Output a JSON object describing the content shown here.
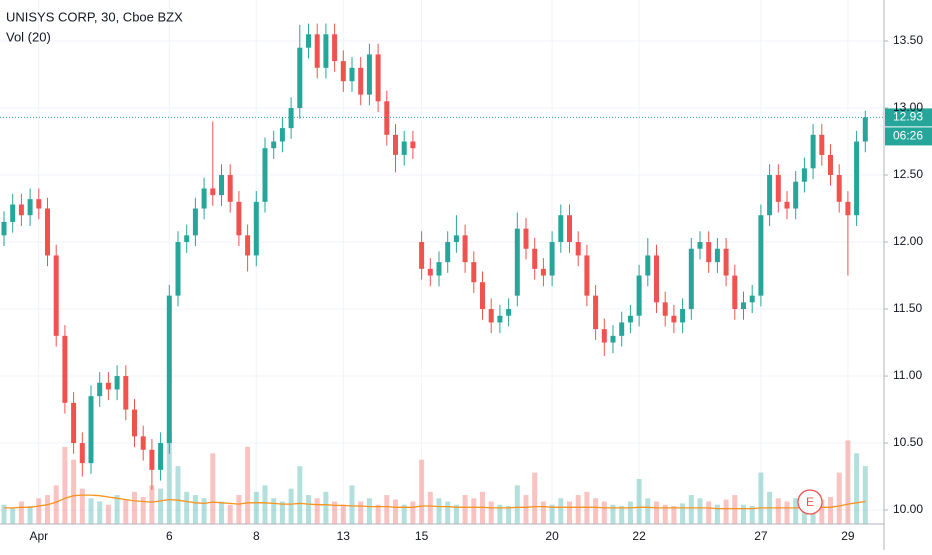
{
  "chart_data": {
    "type": "candlestick",
    "title": "UNISYS CORP, 30, Cboe BZX",
    "indicator": "Vol (20)",
    "countdown": "06:26",
    "earnings_marker": "E",
    "categories": [
      null,
      null,
      null,
      null,
      "Apr",
      null,
      null,
      null,
      null,
      null,
      null,
      null,
      null,
      null,
      null,
      null,
      null,
      null,
      null,
      "6",
      null,
      null,
      null,
      null,
      null,
      null,
      null,
      null,
      null,
      "8",
      null,
      null,
      null,
      null,
      null,
      null,
      null,
      null,
      null,
      "13",
      null,
      null,
      null,
      null,
      null,
      null,
      null,
      null,
      "15",
      null,
      null,
      null,
      null,
      null,
      null,
      null,
      null,
      null,
      null,
      null,
      null,
      null,
      null,
      "20",
      null,
      null,
      null,
      null,
      null,
      null,
      null,
      null,
      null,
      "22",
      null,
      null,
      null,
      null,
      null,
      null,
      null,
      null,
      null,
      null,
      null,
      null,
      null,
      "27",
      null,
      null,
      null,
      null,
      null,
      null,
      null,
      null,
      null,
      "29",
      null,
      null
    ],
    "open": [
      12.05,
      12.15,
      12.28,
      12.2,
      12.32,
      12.25,
      11.9,
      11.3,
      10.8,
      10.5,
      10.35,
      10.85,
      10.95,
      10.9,
      11.0,
      10.75,
      10.55,
      10.45,
      10.3,
      10.5,
      11.6,
      12.0,
      12.05,
      12.25,
      12.4,
      12.35,
      12.5,
      12.3,
      12.05,
      11.9,
      12.3,
      12.7,
      12.75,
      12.85,
      13.0,
      13.45,
      13.55,
      13.3,
      13.55,
      13.35,
      13.2,
      13.3,
      13.1,
      13.4,
      13.05,
      12.8,
      12.65,
      12.75,
      12.0,
      11.8,
      11.75,
      11.85,
      12.0,
      12.05,
      11.85,
      11.7,
      11.5,
      11.4,
      11.45,
      11.6,
      12.1,
      11.95,
      11.8,
      11.75,
      12.0,
      12.2,
      12.0,
      11.9,
      11.6,
      11.35,
      11.25,
      11.3,
      11.4,
      11.45,
      11.75,
      11.9,
      11.55,
      11.45,
      11.4,
      11.5,
      11.95,
      12.0,
      11.85,
      11.95,
      11.75,
      11.5,
      11.55,
      11.6,
      12.2,
      12.5,
      12.3,
      12.25,
      12.45,
      12.55,
      12.8,
      12.65,
      12.5,
      12.3,
      12.2,
      12.75
    ],
    "high": [
      12.23,
      12.36,
      12.36,
      12.4,
      12.4,
      12.33,
      11.98,
      11.38,
      10.88,
      10.58,
      10.93,
      11.03,
      11.03,
      11.08,
      11.08,
      10.83,
      10.63,
      10.53,
      10.58,
      11.68,
      12.08,
      12.13,
      12.33,
      12.48,
      12.9,
      12.58,
      12.58,
      12.38,
      12.13,
      12.38,
      12.78,
      12.83,
      12.93,
      13.08,
      13.62,
      13.63,
      13.63,
      13.63,
      13.63,
      13.43,
      13.38,
      13.38,
      13.48,
      13.48,
      13.13,
      12.88,
      12.83,
      12.83,
      12.08,
      11.88,
      11.93,
      12.08,
      12.2,
      12.13,
      11.93,
      11.78,
      11.58,
      11.53,
      11.58,
      12.22,
      12.18,
      12.03,
      11.88,
      12.08,
      12.28,
      12.28,
      12.08,
      11.98,
      11.68,
      11.43,
      11.38,
      11.48,
      11.53,
      11.83,
      12.03,
      11.98,
      11.63,
      11.53,
      11.58,
      12.03,
      12.08,
      12.08,
      12.03,
      12.03,
      11.83,
      11.63,
      11.68,
      12.28,
      12.58,
      12.58,
      12.38,
      12.53,
      12.63,
      12.88,
      12.88,
      12.73,
      12.58,
      12.38,
      12.83,
      12.98
    ],
    "low": [
      11.97,
      12.07,
      12.12,
      12.12,
      12.17,
      11.82,
      11.22,
      10.72,
      10.42,
      10.25,
      10.27,
      10.77,
      10.82,
      10.82,
      10.67,
      10.47,
      10.37,
      10.15,
      10.22,
      10.42,
      11.52,
      11.92,
      11.97,
      12.17,
      12.27,
      12.27,
      12.22,
      11.97,
      11.78,
      11.82,
      12.22,
      12.62,
      12.67,
      12.77,
      12.92,
      13.37,
      13.22,
      13.22,
      13.27,
      13.12,
      13.12,
      13.02,
      13.02,
      12.97,
      12.72,
      12.52,
      12.57,
      12.62,
      11.72,
      11.67,
      11.67,
      11.77,
      11.92,
      11.77,
      11.62,
      11.42,
      11.32,
      11.32,
      11.37,
      11.52,
      11.87,
      11.72,
      11.67,
      11.67,
      11.92,
      11.92,
      11.82,
      11.52,
      11.27,
      11.15,
      11.17,
      11.22,
      11.32,
      11.37,
      11.67,
      11.47,
      11.37,
      11.32,
      11.32,
      11.42,
      11.87,
      11.77,
      11.77,
      11.67,
      11.42,
      11.42,
      11.47,
      11.52,
      12.12,
      12.22,
      12.17,
      12.17,
      12.37,
      12.47,
      12.57,
      12.42,
      12.22,
      11.75,
      12.12,
      12.67
    ],
    "close": [
      12.15,
      12.28,
      12.2,
      12.32,
      12.25,
      11.9,
      11.3,
      10.8,
      10.5,
      10.35,
      10.85,
      10.95,
      10.9,
      11.0,
      10.75,
      10.55,
      10.45,
      10.3,
      10.5,
      11.6,
      12.0,
      12.05,
      12.25,
      12.4,
      12.35,
      12.5,
      12.3,
      12.05,
      11.9,
      12.3,
      12.7,
      12.75,
      12.85,
      13.0,
      13.45,
      13.55,
      13.3,
      13.55,
      13.35,
      13.2,
      13.3,
      13.1,
      13.4,
      13.05,
      12.8,
      12.65,
      12.75,
      12.7,
      11.8,
      11.75,
      11.85,
      12.0,
      12.05,
      11.85,
      11.7,
      11.5,
      11.4,
      11.45,
      11.5,
      12.1,
      11.95,
      11.8,
      11.75,
      12.0,
      12.2,
      12.0,
      11.9,
      11.6,
      11.35,
      11.25,
      11.3,
      11.4,
      11.45,
      11.75,
      11.9,
      11.55,
      11.45,
      11.4,
      11.5,
      11.95,
      12.0,
      11.85,
      11.95,
      11.75,
      11.5,
      11.55,
      11.6,
      12.2,
      12.5,
      12.3,
      12.25,
      12.45,
      12.55,
      12.8,
      12.65,
      12.5,
      12.3,
      12.2,
      12.75,
      12.93
    ],
    "volume": [
      30,
      25,
      35,
      28,
      40,
      45,
      60,
      120,
      100,
      55,
      40,
      35,
      30,
      45,
      38,
      50,
      42,
      60,
      55,
      140,
      90,
      50,
      45,
      40,
      110,
      35,
      30,
      45,
      120,
      50,
      60,
      40,
      35,
      55,
      90,
      45,
      40,
      50,
      35,
      30,
      60,
      35,
      40,
      30,
      45,
      38,
      30,
      35,
      100,
      50,
      40,
      35,
      30,
      45,
      40,
      50,
      35,
      30,
      28,
      60,
      45,
      80,
      35,
      30,
      40,
      35,
      45,
      50,
      40,
      35,
      30,
      28,
      35,
      70,
      40,
      35,
      30,
      28,
      32,
      45,
      40,
      35,
      30,
      38,
      45,
      30,
      28,
      80,
      50,
      40,
      35,
      40,
      45,
      50,
      38,
      42,
      80,
      130,
      110,
      90
    ],
    "volume_ma": [
      25,
      25,
      26,
      26,
      28,
      30,
      34,
      40,
      44,
      45,
      45,
      44,
      42,
      40,
      38,
      36,
      35,
      34,
      36,
      38,
      37,
      35,
      33,
      32,
      34,
      33,
      32,
      31,
      33,
      33,
      33,
      32,
      31,
      31,
      32,
      31,
      30,
      30,
      29,
      29,
      28,
      28,
      27,
      27,
      27,
      26,
      26,
      26,
      28,
      28,
      27,
      27,
      26,
      26,
      26,
      26,
      25,
      25,
      25,
      26,
      26,
      27,
      27,
      26,
      26,
      26,
      26,
      26,
      26,
      25,
      25,
      25,
      25,
      26,
      26,
      25,
      25,
      25,
      25,
      25,
      25,
      25,
      24,
      24,
      24,
      24,
      24,
      25,
      25,
      25,
      25,
      25,
      25,
      26,
      26,
      26,
      28,
      31,
      33,
      35
    ],
    "ylim": [
      9.896,
      13.806
    ],
    "yticks": [
      {
        "value": 10,
        "label": "10.00"
      },
      {
        "value": 10.5,
        "label": "10.50"
      },
      {
        "value": 11,
        "label": "11.00"
      },
      {
        "value": 11.5,
        "label": "11.50"
      },
      {
        "value": 12,
        "label": "12.00"
      },
      {
        "value": 12.5,
        "label": "12.50"
      },
      {
        "value": 13,
        "label": "13.00"
      },
      {
        "value": 13.5,
        "label": "13.50"
      }
    ],
    "up_color": "#26a69a",
    "down_color": "#ef5350",
    "ma_color": "#f7931e",
    "grid": true
  }
}
